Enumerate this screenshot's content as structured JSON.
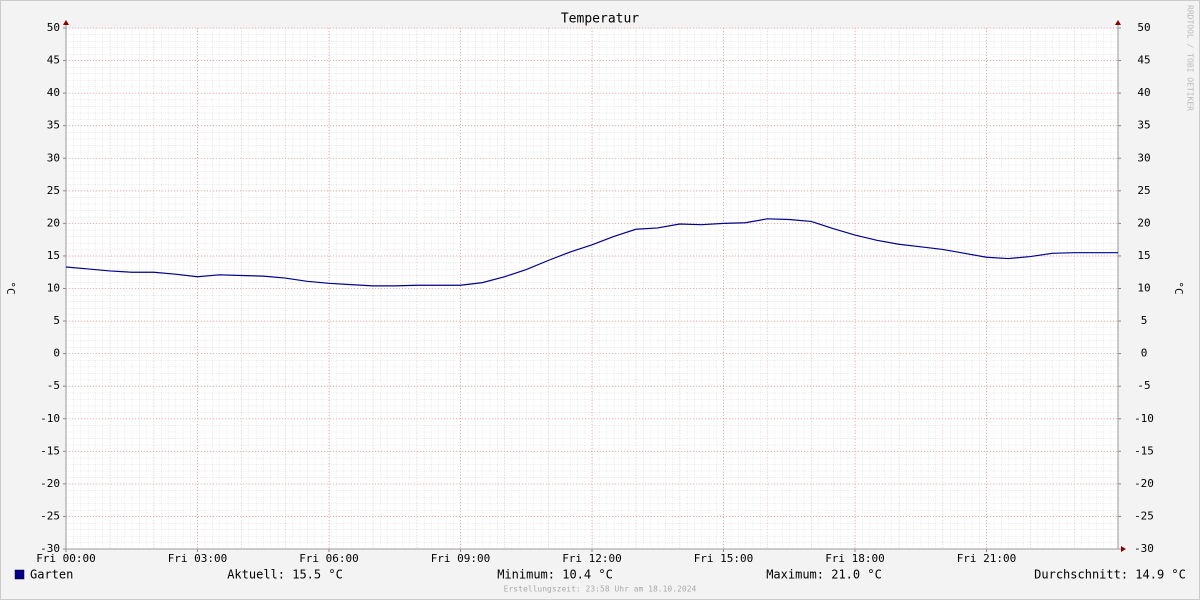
{
  "chart_data": {
    "type": "line",
    "title": "Temperatur",
    "y_label": "°C",
    "y2_label": "°C",
    "watermark": "RRDTOOL / TOBI OETIKER",
    "x": [
      0,
      0.5,
      1,
      1.5,
      2,
      2.5,
      3,
      3.5,
      4,
      4.5,
      5,
      5.5,
      6,
      6.5,
      7,
      7.5,
      8,
      8.5,
      9,
      9.5,
      10,
      10.5,
      11,
      11.5,
      12,
      12.5,
      13,
      13.5,
      14,
      14.5,
      15,
      15.5,
      16,
      16.5,
      17,
      17.5,
      18,
      18.5,
      19,
      19.5,
      20,
      20.5,
      21,
      21.5,
      22,
      22.5,
      23,
      23.5,
      24
    ],
    "series": [
      {
        "name": "Garten",
        "color": "#00008b",
        "values": [
          13.3,
          13.0,
          12.7,
          12.5,
          12.5,
          12.2,
          11.8,
          12.1,
          12.0,
          11.9,
          11.6,
          11.1,
          10.8,
          10.6,
          10.4,
          10.4,
          10.5,
          10.5,
          10.5,
          10.9,
          11.8,
          12.9,
          14.3,
          15.6,
          16.7,
          18.0,
          19.1,
          19.3,
          19.9,
          19.8,
          20.0,
          20.1,
          20.7,
          20.6,
          20.3,
          19.2,
          18.2,
          17.4,
          16.8,
          16.4,
          16.0,
          15.4,
          14.8,
          14.6,
          14.9,
          15.4,
          15.5,
          15.5,
          15.5
        ]
      }
    ],
    "xlim": [
      0,
      24
    ],
    "xticks": [
      {
        "value": 0,
        "label": "Fri 00:00"
      },
      {
        "value": 3,
        "label": "Fri 03:00"
      },
      {
        "value": 6,
        "label": "Fri 06:00"
      },
      {
        "value": 9,
        "label": "Fri 09:00"
      },
      {
        "value": 12,
        "label": "Fri 12:00"
      },
      {
        "value": 15,
        "label": "Fri 15:00"
      },
      {
        "value": 18,
        "label": "Fri 18:00"
      },
      {
        "value": 21,
        "label": "Fri 21:00"
      }
    ],
    "ylim": [
      -30,
      50
    ],
    "yticks": [
      -30,
      -25,
      -20,
      -15,
      -10,
      -5,
      0,
      5,
      10,
      15,
      20,
      25,
      30,
      35,
      40,
      45,
      50
    ],
    "y2lim": [
      -30,
      50
    ],
    "y2ticks": [
      -30,
      -25,
      -20,
      -15,
      -10,
      -5,
      0,
      5,
      10,
      15,
      20,
      25,
      30,
      35,
      40,
      45,
      50
    ],
    "grid": true,
    "stats": [
      "Aktuell: 15.5 °C",
      "Minimum: 10.4 °C",
      "Maximum: 21.0 °C",
      "Durchschnitt: 14.9 °C"
    ],
    "footer": "Erstellungszeit: 23:58 Uhr am 18.10.2024"
  }
}
